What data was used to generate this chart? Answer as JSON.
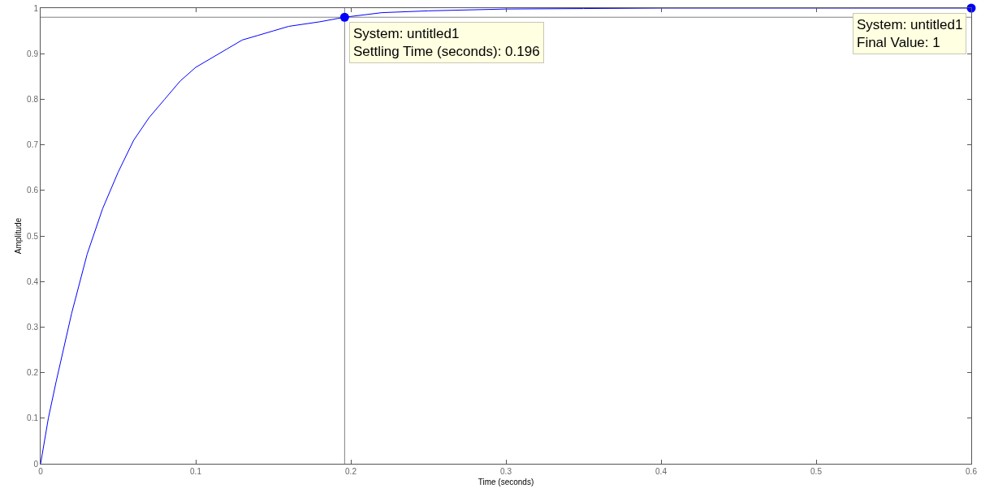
{
  "chart_data": {
    "type": "line",
    "xlabel": "Time (seconds)",
    "ylabel": "Amplitude",
    "x": [
      0,
      0.005,
      0.01,
      0.02,
      0.03,
      0.04,
      0.05,
      0.06,
      0.07,
      0.08,
      0.09,
      0.1,
      0.11,
      0.12,
      0.13,
      0.14,
      0.15,
      0.16,
      0.18,
      0.196,
      0.22,
      0.25,
      0.3,
      0.35,
      0.4,
      0.5,
      0.6
    ],
    "series": [
      {
        "color": "#0000ff",
        "marker": "none",
        "values": [
          0,
          0.1,
          0.18,
          0.33,
          0.46,
          0.56,
          0.64,
          0.71,
          0.76,
          0.8,
          0.84,
          0.87,
          0.89,
          0.91,
          0.93,
          0.94,
          0.95,
          0.96,
          0.97,
          0.98,
          0.99,
          0.994,
          0.998,
          0.999,
          1,
          1,
          1
        ]
      },
      {
        "type": "scatter",
        "color": "#0000ff",
        "marker": "circle",
        "x": [
          0.196,
          0.6
        ],
        "values": [
          0.98,
          1
        ]
      }
    ],
    "xlim": [
      0,
      0.6
    ],
    "xticks": [
      0,
      0.1,
      0.2,
      0.3,
      0.4,
      0.5,
      0.6
    ],
    "ylim": [
      0,
      1
    ],
    "yticks": [
      0,
      0.1,
      0.2,
      0.3,
      0.4,
      0.5,
      0.6,
      0.7,
      0.8,
      0.9,
      1
    ],
    "ref_lines": [
      {
        "axis": "x",
        "value": 0.196,
        "color": "#808080"
      },
      {
        "axis": "y",
        "value": 0.98,
        "color": "#808080"
      }
    ],
    "annotations": [
      {
        "text": "System: untitled1\nSettling Time (seconds): 0.196",
        "x": 0.196,
        "y": 0.98
      },
      {
        "text": "System: untitled1\nFinal Value: 1",
        "x": 0.6,
        "y": 1
      }
    ],
    "grid": false
  }
}
